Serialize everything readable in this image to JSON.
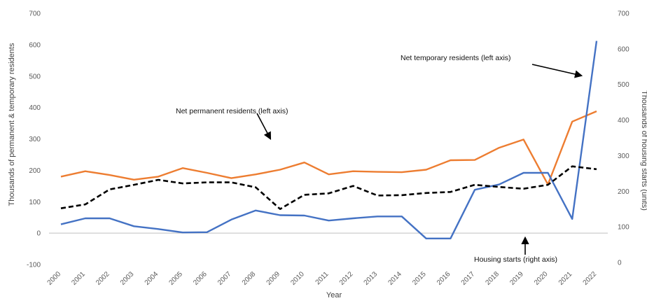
{
  "chart_data": {
    "type": "line",
    "x": [
      "2000",
      "2001",
      "2002",
      "2003",
      "2004",
      "2005",
      "2006",
      "2007",
      "2008",
      "2009",
      "2010",
      "2011",
      "2012",
      "2013",
      "2014",
      "2015",
      "2016",
      "2017",
      "2018",
      "2019",
      "2020",
      "2021",
      "2022"
    ],
    "xlabel": "Year",
    "ylabel_left": "Thousands of permanent & temporary residents",
    "ylabel_right": "Thousands of housing starts (units)",
    "ylim_left": [
      -100,
      700
    ],
    "ylim_right": [
      0,
      700
    ],
    "yticks_left": [
      "700",
      "600",
      "500",
      "400",
      "300",
      "200",
      "100",
      "0",
      "-100"
    ],
    "yticks_right": [
      "700",
      "600",
      "500",
      "400",
      "300",
      "200",
      "100",
      "0"
    ],
    "grid": false,
    "series": [
      {
        "name": "Net permanent residents",
        "axis": "left",
        "color": "#ED7D31",
        "style": "solid",
        "values": [
          180,
          197,
          185,
          170,
          180,
          207,
          192,
          175,
          187,
          202,
          225,
          187,
          197,
          195,
          194,
          202,
          232,
          233,
          272,
          298,
          155,
          355,
          388
        ]
      },
      {
        "name": "Net temporary residents",
        "axis": "left",
        "color": "#4472C4",
        "style": "solid",
        "values": [
          28,
          47,
          47,
          22,
          13,
          2,
          3,
          43,
          72,
          57,
          56,
          40,
          47,
          53,
          53,
          -17,
          -17,
          138,
          155,
          192,
          192,
          45,
          612
        ]
      },
      {
        "name": "Housing starts",
        "axis": "right",
        "color": "#000000",
        "style": "dashed",
        "values": [
          152,
          163,
          205,
          218,
          232,
          222,
          225,
          225,
          211,
          150,
          190,
          194,
          215,
          188,
          189,
          195,
          198,
          218,
          212,
          207,
          218,
          270,
          262
        ]
      }
    ],
    "annotations": [
      "Net temporary residents (left axis)",
      "Net permanent residents (left axis)",
      "Housing starts (right axis)"
    ]
  }
}
